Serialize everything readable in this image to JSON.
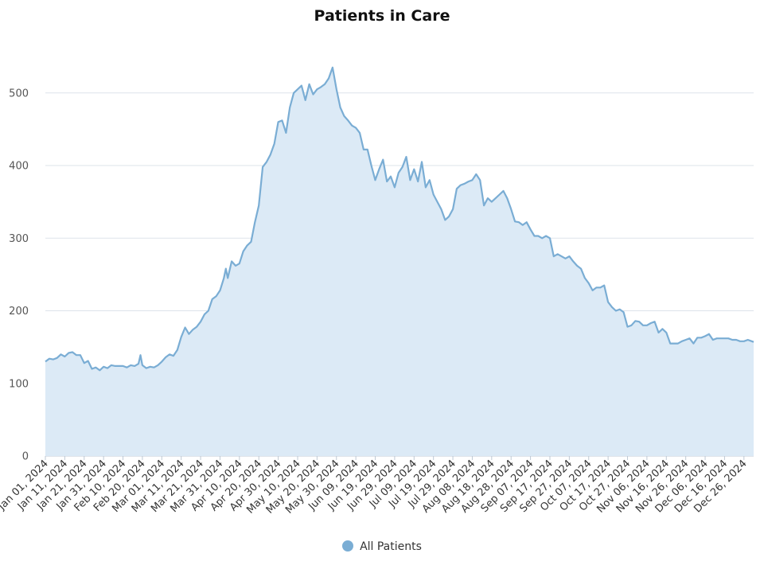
{
  "chart_data": {
    "type": "area",
    "title": "Patients in Care",
    "xlabel": "",
    "ylabel": "",
    "ylim": [
      0,
      560
    ],
    "xlim": [
      "2024-01-01",
      "2024-12-31"
    ],
    "y_ticks": [
      0,
      100,
      200,
      300,
      400,
      500
    ],
    "x_tick_labels": [
      "Jan 01, 2024",
      "Jan 11, 2024",
      "Jan 21, 2024",
      "Jan 31, 2024",
      "Feb 10, 2024",
      "Feb 20, 2024",
      "Mar 01, 2024",
      "Mar 11, 2024",
      "Mar 21, 2024",
      "Mar 31, 2024",
      "Apr 10, 2024",
      "Apr 20, 2024",
      "Apr 30, 2024",
      "May 10, 2024",
      "May 20, 2024",
      "May 30, 2024",
      "Jun 09, 2024",
      "Jun 19, 2024",
      "Jun 29, 2024",
      "Jul 09, 2024",
      "Jul 19, 2024",
      "Jul 29, 2024",
      "Aug 08, 2024",
      "Aug 18, 2024",
      "Aug 28, 2024",
      "Sep 07, 2024",
      "Sep 17, 2024",
      "Sep 27, 2024",
      "Oct 07, 2024",
      "Oct 17, 2024",
      "Oct 27, 2024",
      "Nov 06, 2024",
      "Nov 16, 2024",
      "Nov 26, 2024",
      "Dec 06, 2024",
      "Dec 16, 2024",
      "Dec 26, 2024"
    ],
    "grid": true,
    "legend_position": "bottom-center",
    "series": [
      {
        "name": "All Patients",
        "color": "#7aadd4",
        "fill_color": "#dceaf6",
        "points": [
          [
            "2024-01-01",
            130
          ],
          [
            "2024-01-03",
            134
          ],
          [
            "2024-01-05",
            133
          ],
          [
            "2024-01-07",
            135
          ],
          [
            "2024-01-09",
            140
          ],
          [
            "2024-01-11",
            137
          ],
          [
            "2024-01-13",
            142
          ],
          [
            "2024-01-15",
            143
          ],
          [
            "2024-01-17",
            139
          ],
          [
            "2024-01-19",
            139
          ],
          [
            "2024-01-21",
            128
          ],
          [
            "2024-01-23",
            131
          ],
          [
            "2024-01-25",
            120
          ],
          [
            "2024-01-27",
            122
          ],
          [
            "2024-01-29",
            118
          ],
          [
            "2024-01-31",
            123
          ],
          [
            "2024-02-02",
            121
          ],
          [
            "2024-02-04",
            125
          ],
          [
            "2024-02-06",
            124
          ],
          [
            "2024-02-08",
            124
          ],
          [
            "2024-02-10",
            124
          ],
          [
            "2024-02-12",
            122
          ],
          [
            "2024-02-14",
            125
          ],
          [
            "2024-02-16",
            124
          ],
          [
            "2024-02-18",
            127
          ],
          [
            "2024-02-19",
            139
          ],
          [
            "2024-02-20",
            125
          ],
          [
            "2024-02-22",
            121
          ],
          [
            "2024-02-24",
            123
          ],
          [
            "2024-02-26",
            122
          ],
          [
            "2024-02-28",
            125
          ],
          [
            "2024-03-01",
            130
          ],
          [
            "2024-03-03",
            136
          ],
          [
            "2024-03-05",
            140
          ],
          [
            "2024-03-07",
            138
          ],
          [
            "2024-03-09",
            146
          ],
          [
            "2024-03-11",
            164
          ],
          [
            "2024-03-13",
            177
          ],
          [
            "2024-03-15",
            168
          ],
          [
            "2024-03-17",
            174
          ],
          [
            "2024-03-19",
            178
          ],
          [
            "2024-03-21",
            185
          ],
          [
            "2024-03-23",
            195
          ],
          [
            "2024-03-25",
            200
          ],
          [
            "2024-03-27",
            216
          ],
          [
            "2024-03-29",
            220
          ],
          [
            "2024-03-31",
            228
          ],
          [
            "2024-04-02",
            245
          ],
          [
            "2024-04-03",
            258
          ],
          [
            "2024-04-04",
            245
          ],
          [
            "2024-04-06",
            268
          ],
          [
            "2024-04-08",
            262
          ],
          [
            "2024-04-10",
            265
          ],
          [
            "2024-04-12",
            282
          ],
          [
            "2024-04-14",
            290
          ],
          [
            "2024-04-16",
            295
          ],
          [
            "2024-04-18",
            322
          ],
          [
            "2024-04-20",
            345
          ],
          [
            "2024-04-22",
            398
          ],
          [
            "2024-04-24",
            405
          ],
          [
            "2024-04-26",
            415
          ],
          [
            "2024-04-28",
            430
          ],
          [
            "2024-04-30",
            460
          ],
          [
            "2024-05-02",
            462
          ],
          [
            "2024-05-04",
            445
          ],
          [
            "2024-05-06",
            480
          ],
          [
            "2024-05-08",
            500
          ],
          [
            "2024-05-10",
            505
          ],
          [
            "2024-05-12",
            510
          ],
          [
            "2024-05-14",
            490
          ],
          [
            "2024-05-16",
            512
          ],
          [
            "2024-05-18",
            498
          ],
          [
            "2024-05-20",
            505
          ],
          [
            "2024-05-22",
            508
          ],
          [
            "2024-05-24",
            512
          ],
          [
            "2024-05-26",
            520
          ],
          [
            "2024-05-28",
            535
          ],
          [
            "2024-05-30",
            505
          ],
          [
            "2024-06-01",
            480
          ],
          [
            "2024-06-03",
            468
          ],
          [
            "2024-06-05",
            462
          ],
          [
            "2024-06-07",
            455
          ],
          [
            "2024-06-09",
            452
          ],
          [
            "2024-06-11",
            445
          ],
          [
            "2024-06-13",
            422
          ],
          [
            "2024-06-15",
            422
          ],
          [
            "2024-06-17",
            400
          ],
          [
            "2024-06-19",
            380
          ],
          [
            "2024-06-21",
            395
          ],
          [
            "2024-06-23",
            408
          ],
          [
            "2024-06-25",
            378
          ],
          [
            "2024-06-27",
            385
          ],
          [
            "2024-06-29",
            370
          ],
          [
            "2024-07-01",
            390
          ],
          [
            "2024-07-03",
            398
          ],
          [
            "2024-07-05",
            412
          ],
          [
            "2024-07-07",
            380
          ],
          [
            "2024-07-09",
            395
          ],
          [
            "2024-07-11",
            378
          ],
          [
            "2024-07-13",
            405
          ],
          [
            "2024-07-15",
            370
          ],
          [
            "2024-07-17",
            380
          ],
          [
            "2024-07-19",
            360
          ],
          [
            "2024-07-21",
            350
          ],
          [
            "2024-07-23",
            340
          ],
          [
            "2024-07-25",
            325
          ],
          [
            "2024-07-27",
            330
          ],
          [
            "2024-07-29",
            340
          ],
          [
            "2024-07-31",
            368
          ],
          [
            "2024-08-02",
            373
          ],
          [
            "2024-08-04",
            375
          ],
          [
            "2024-08-06",
            378
          ],
          [
            "2024-08-08",
            380
          ],
          [
            "2024-08-10",
            388
          ],
          [
            "2024-08-12",
            380
          ],
          [
            "2024-08-14",
            345
          ],
          [
            "2024-08-16",
            355
          ],
          [
            "2024-08-18",
            350
          ],
          [
            "2024-08-20",
            355
          ],
          [
            "2024-08-22",
            360
          ],
          [
            "2024-08-24",
            365
          ],
          [
            "2024-08-26",
            355
          ],
          [
            "2024-08-28",
            340
          ],
          [
            "2024-08-30",
            323
          ],
          [
            "2024-09-01",
            322
          ],
          [
            "2024-09-03",
            318
          ],
          [
            "2024-09-05",
            322
          ],
          [
            "2024-09-07",
            312
          ],
          [
            "2024-09-09",
            303
          ],
          [
            "2024-09-11",
            303
          ],
          [
            "2024-09-13",
            300
          ],
          [
            "2024-09-15",
            303
          ],
          [
            "2024-09-17",
            300
          ],
          [
            "2024-09-19",
            275
          ],
          [
            "2024-09-21",
            278
          ],
          [
            "2024-09-23",
            275
          ],
          [
            "2024-09-25",
            272
          ],
          [
            "2024-09-27",
            275
          ],
          [
            "2024-09-29",
            268
          ],
          [
            "2024-10-01",
            262
          ],
          [
            "2024-10-03",
            258
          ],
          [
            "2024-10-05",
            245
          ],
          [
            "2024-10-07",
            238
          ],
          [
            "2024-10-09",
            228
          ],
          [
            "2024-10-11",
            232
          ],
          [
            "2024-10-13",
            232
          ],
          [
            "2024-10-15",
            235
          ],
          [
            "2024-10-17",
            212
          ],
          [
            "2024-10-19",
            205
          ],
          [
            "2024-10-21",
            200
          ],
          [
            "2024-10-23",
            202
          ],
          [
            "2024-10-25",
            198
          ],
          [
            "2024-10-27",
            178
          ],
          [
            "2024-10-29",
            180
          ],
          [
            "2024-10-31",
            186
          ],
          [
            "2024-11-02",
            185
          ],
          [
            "2024-11-04",
            180
          ],
          [
            "2024-11-06",
            180
          ],
          [
            "2024-11-08",
            183
          ],
          [
            "2024-11-10",
            185
          ],
          [
            "2024-11-12",
            170
          ],
          [
            "2024-11-14",
            175
          ],
          [
            "2024-11-16",
            170
          ],
          [
            "2024-11-18",
            155
          ],
          [
            "2024-11-20",
            155
          ],
          [
            "2024-11-22",
            155
          ],
          [
            "2024-11-24",
            158
          ],
          [
            "2024-11-26",
            160
          ],
          [
            "2024-11-28",
            162
          ],
          [
            "2024-11-30",
            155
          ],
          [
            "2024-12-02",
            163
          ],
          [
            "2024-12-04",
            163
          ],
          [
            "2024-12-06",
            165
          ],
          [
            "2024-12-08",
            168
          ],
          [
            "2024-12-10",
            160
          ],
          [
            "2024-12-12",
            162
          ],
          [
            "2024-12-14",
            162
          ],
          [
            "2024-12-16",
            162
          ],
          [
            "2024-12-18",
            162
          ],
          [
            "2024-12-20",
            160
          ],
          [
            "2024-12-22",
            160
          ],
          [
            "2024-12-24",
            158
          ],
          [
            "2024-12-26",
            158
          ],
          [
            "2024-12-28",
            160
          ],
          [
            "2024-12-30",
            158
          ],
          [
            "2024-12-31",
            157
          ]
        ]
      }
    ]
  }
}
